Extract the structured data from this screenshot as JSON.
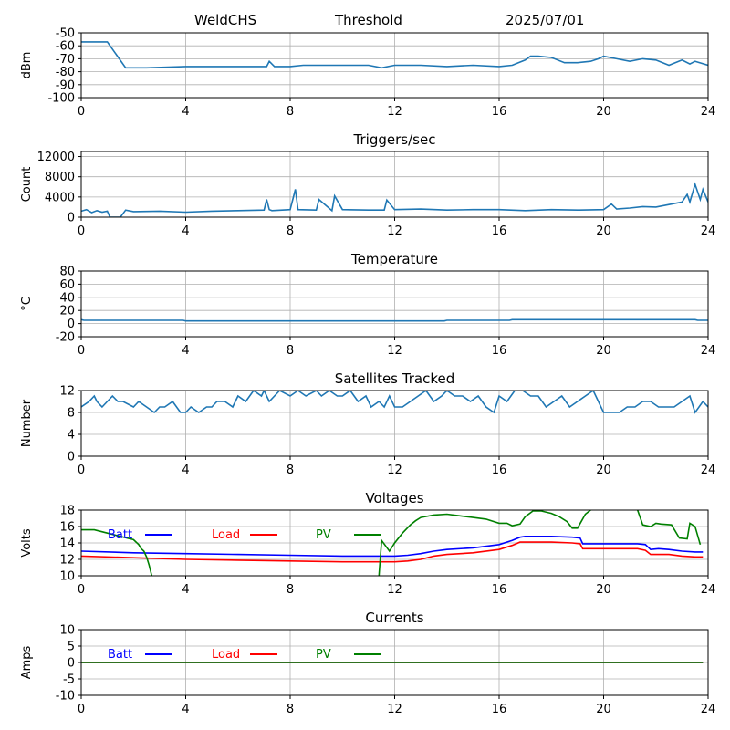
{
  "header": {
    "station": "WeldCHS",
    "mode": "Threshold",
    "date": "2025/07/01"
  },
  "chart_data": [
    {
      "type": "line",
      "title": "",
      "ylabel": "dBm",
      "xlim": [
        0,
        24
      ],
      "ylim": [
        -100,
        -50
      ],
      "xticks": [
        "0",
        "4",
        "8",
        "12",
        "16",
        "20",
        "24"
      ],
      "yticks": [
        "-100",
        "-90",
        "-80",
        "-70",
        "-60",
        "-50"
      ],
      "grid": true,
      "series": [
        {
          "color": "#1f77b4",
          "x": [
            0,
            1,
            1.7,
            2.5,
            4,
            6,
            7.1,
            7.2,
            7.4,
            8,
            8.5,
            9,
            10,
            11,
            11.5,
            12,
            13,
            14,
            15,
            16,
            16.5,
            17,
            17.2,
            17.5,
            18,
            18.5,
            19,
            19.5,
            19.8,
            20,
            20.5,
            21,
            21.5,
            22,
            22.5,
            23,
            23.3,
            23.5,
            24
          ],
          "y": [
            -57,
            -57,
            -77,
            -77,
            -76,
            -76,
            -76,
            -72,
            -76,
            -76,
            -75,
            -75,
            -75,
            -75,
            -77,
            -75,
            -75,
            -76,
            -75,
            -76,
            -75,
            -71,
            -68,
            -68,
            -69,
            -73,
            -73,
            -72,
            -70,
            -68,
            -70,
            -72,
            -70,
            -71,
            -75,
            -71,
            -74,
            -72,
            -75
          ]
        }
      ]
    },
    {
      "type": "line",
      "title": "Triggers/sec",
      "ylabel": "Count",
      "xlim": [
        0,
        24
      ],
      "ylim": [
        0,
        13000
      ],
      "xticks": [
        "0",
        "4",
        "8",
        "12",
        "16",
        "20",
        "24"
      ],
      "yticks": [
        "0",
        "4000",
        "8000",
        "12000"
      ],
      "ytick_values": [
        0,
        4000,
        8000,
        12000
      ],
      "grid": true,
      "series": [
        {
          "color": "#1f77b4",
          "x": [
            0,
            0.2,
            0.4,
            0.6,
            0.8,
            1.0,
            1.1,
            1.5,
            1.7,
            2,
            3,
            4,
            5,
            6,
            7,
            7.1,
            7.2,
            7.3,
            8,
            8.2,
            8.3,
            9,
            9.1,
            9.6,
            9.7,
            10,
            11,
            11.6,
            11.7,
            12,
            13,
            14,
            15,
            16,
            17,
            18,
            19,
            20,
            20.3,
            20.5,
            21,
            21.5,
            22,
            22.5,
            23,
            23.2,
            23.3,
            23.5,
            23.7,
            23.8,
            24
          ],
          "y": [
            1200,
            1500,
            900,
            1300,
            1000,
            1200,
            0,
            0,
            1400,
            1100,
            1200,
            1000,
            1200,
            1300,
            1400,
            3500,
            1500,
            1300,
            1500,
            5500,
            1500,
            1400,
            3500,
            1300,
            4200,
            1500,
            1400,
            1400,
            3400,
            1500,
            1600,
            1400,
            1500,
            1500,
            1300,
            1500,
            1400,
            1500,
            2600,
            1600,
            1800,
            2100,
            2000,
            2500,
            3000,
            4500,
            3000,
            6500,
            3500,
            5500,
            3000
          ]
        }
      ]
    },
    {
      "type": "line",
      "title": "Temperature",
      "ylabel": "°C",
      "xlim": [
        0,
        24
      ],
      "ylim": [
        -20,
        80
      ],
      "xticks": [
        "0",
        "4",
        "8",
        "12",
        "16",
        "20",
        "24"
      ],
      "yticks": [
        "-20",
        "0",
        "20",
        "40",
        "60",
        "80"
      ],
      "grid": true,
      "series": [
        {
          "color": "#1f77b4",
          "x": [
            0,
            0.1,
            3.9,
            4,
            13.9,
            14,
            16.4,
            16.5,
            23.5,
            23.6,
            24
          ],
          "y": [
            6,
            5,
            5,
            4,
            4,
            5,
            5,
            6,
            6,
            5,
            5
          ]
        }
      ]
    },
    {
      "type": "line",
      "title": "Satellites Tracked",
      "ylabel": "Number",
      "xlim": [
        0,
        24
      ],
      "ylim": [
        0,
        12
      ],
      "xticks": [
        "0",
        "4",
        "8",
        "12",
        "16",
        "20",
        "24"
      ],
      "yticks": [
        "0",
        "4",
        "8",
        "12"
      ],
      "grid": true,
      "series": [
        {
          "color": "#1f77b4",
          "x": [
            0,
            0.3,
            0.5,
            0.6,
            0.8,
            1,
            1.2,
            1.4,
            1.6,
            2,
            2.2,
            2.5,
            2.8,
            3,
            3.2,
            3.5,
            3.8,
            4,
            4.2,
            4.5,
            4.8,
            5,
            5.2,
            5.5,
            5.8,
            6,
            6.3,
            6.6,
            6.9,
            7,
            7.2,
            7.4,
            7.6,
            8,
            8.3,
            8.6,
            9,
            9.2,
            9.5,
            9.8,
            10,
            10.3,
            10.6,
            10.9,
            11.1,
            11.4,
            11.6,
            11.8,
            12,
            12.3,
            12.6,
            12.9,
            13.2,
            13.5,
            13.8,
            14,
            14.3,
            14.6,
            14.9,
            15.2,
            15.5,
            15.8,
            16,
            16.3,
            16.6,
            16.9,
            17.2,
            17.5,
            17.8,
            18.1,
            18.4,
            18.7,
            19,
            19.3,
            19.6,
            19.9,
            20,
            20.3,
            20.6,
            20.9,
            21.2,
            21.5,
            21.8,
            22.1,
            22.4,
            22.7,
            23,
            23.3,
            23.5,
            23.8,
            24
          ],
          "y": [
            9,
            10,
            11,
            10,
            9,
            10,
            11,
            10,
            10,
            9,
            10,
            9,
            8,
            9,
            9,
            10,
            8,
            8,
            9,
            8,
            9,
            9,
            10,
            10,
            9,
            11,
            10,
            12,
            11,
            12,
            10,
            11,
            12,
            11,
            12,
            11,
            12,
            11,
            12,
            11,
            11,
            12,
            10,
            11,
            9,
            10,
            9,
            11,
            9,
            9,
            10,
            11,
            12,
            10,
            11,
            12,
            11,
            11,
            10,
            11,
            9,
            8,
            11,
            10,
            12,
            12,
            11,
            11,
            9,
            10,
            11,
            9,
            10,
            11,
            12,
            9,
            8,
            8,
            8,
            9,
            9,
            10,
            10,
            9,
            9,
            9,
            10,
            11,
            8,
            10,
            9
          ]
        }
      ]
    },
    {
      "type": "line",
      "title": "Voltages",
      "ylabel": "Volts",
      "xlim": [
        0,
        24
      ],
      "ylim": [
        10,
        18
      ],
      "xticks": [
        "0",
        "4",
        "8",
        "12",
        "16",
        "20",
        "24"
      ],
      "yticks": [
        "10",
        "12",
        "14",
        "16",
        "18"
      ],
      "grid": true,
      "legend": [
        "Batt",
        "Load",
        "PV"
      ],
      "legend_placement": "top-left",
      "series": [
        {
          "name": "Batt",
          "color": "#0000ff",
          "x": [
            0,
            2,
            4,
            6,
            8,
            10,
            12,
            12.5,
            13,
            13.5,
            14,
            15,
            16,
            16.5,
            16.8,
            17,
            18,
            18.8,
            19.1,
            19.2,
            20,
            21,
            21.3,
            21.6,
            21.8,
            22.1,
            22.5,
            23,
            23.5,
            23.8
          ],
          "y": [
            13.0,
            12.8,
            12.7,
            12.6,
            12.5,
            12.4,
            12.4,
            12.5,
            12.7,
            13.0,
            13.2,
            13.4,
            13.8,
            14.3,
            14.7,
            14.8,
            14.8,
            14.7,
            14.6,
            13.9,
            13.9,
            13.9,
            13.9,
            13.8,
            13.2,
            13.3,
            13.2,
            13.0,
            12.9,
            12.9
          ]
        },
        {
          "name": "Load",
          "color": "#ff0000",
          "x": [
            0,
            2,
            4,
            6,
            8,
            10,
            12,
            12.5,
            13,
            13.5,
            14,
            15,
            16,
            16.5,
            16.8,
            17,
            18,
            18.8,
            19.1,
            19.2,
            20,
            21,
            21.3,
            21.6,
            21.8,
            22.1,
            22.5,
            23,
            23.5,
            23.8
          ],
          "y": [
            12.4,
            12.2,
            12.0,
            11.9,
            11.8,
            11.7,
            11.7,
            11.8,
            12.0,
            12.4,
            12.6,
            12.8,
            13.2,
            13.7,
            14.1,
            14.1,
            14.1,
            14.0,
            13.9,
            13.3,
            13.3,
            13.3,
            13.3,
            13.1,
            12.6,
            12.6,
            12.6,
            12.4,
            12.3,
            12.3
          ]
        },
        {
          "name": "PV",
          "color": "#008000",
          "x": [
            0,
            0.5,
            1,
            1.5,
            2,
            2.2,
            2.3,
            2.4,
            2.5,
            2.6,
            2.7
          ],
          "y": [
            15.6,
            15.6,
            15.2,
            14.8,
            14.4,
            13.8,
            13.3,
            13.0,
            12.3,
            11.3,
            10.0
          ]
        },
        {
          "name": "",
          "color": "#008000",
          "x": [
            11.4,
            11.5,
            11.8,
            12,
            12.3,
            12.6,
            12.8,
            13,
            13.5,
            14,
            14.5,
            15,
            15.5,
            16,
            16.3,
            16.5,
            16.8,
            17,
            17.3,
            17.6,
            18,
            18.3,
            18.6,
            18.8,
            19,
            19.3,
            19.5
          ],
          "y": [
            10.0,
            14.3,
            13.0,
            14.0,
            15.2,
            16.2,
            16.7,
            17.1,
            17.4,
            17.5,
            17.3,
            17.1,
            16.9,
            16.4,
            16.4,
            16.1,
            16.3,
            17.2,
            17.9,
            17.9,
            17.6,
            17.2,
            16.6,
            15.8,
            15.8,
            17.5,
            18.0
          ]
        },
        {
          "name": "",
          "color": "#008000",
          "x": [
            21.3,
            21.5,
            21.8,
            22,
            22.2,
            22.6,
            22.9,
            23.2,
            23.3,
            23.5,
            23.7
          ],
          "y": [
            18.0,
            16.2,
            16.0,
            16.4,
            16.3,
            16.2,
            14.6,
            14.5,
            16.4,
            16.0,
            13.8
          ]
        }
      ]
    },
    {
      "type": "line",
      "title": "Currents",
      "ylabel": "Amps",
      "xlim": [
        0,
        24
      ],
      "ylim": [
        -10,
        10
      ],
      "xticks": [
        "0",
        "4",
        "8",
        "12",
        "16",
        "20",
        "24"
      ],
      "yticks": [
        "-10",
        "-5",
        "0",
        "5",
        "10"
      ],
      "grid": true,
      "legend": [
        "Batt",
        "Load",
        "PV"
      ],
      "legend_placement": "top-left",
      "series": [
        {
          "name": "Batt",
          "color": "#0000ff",
          "x": [
            0,
            23.8
          ],
          "y": [
            0,
            0
          ]
        },
        {
          "name": "Load",
          "color": "#ff0000",
          "x": [
            0,
            23.8
          ],
          "y": [
            0,
            0
          ]
        },
        {
          "name": "PV",
          "color": "#008000",
          "x": [
            0,
            23.8
          ],
          "y": [
            0,
            0
          ]
        }
      ]
    }
  ]
}
